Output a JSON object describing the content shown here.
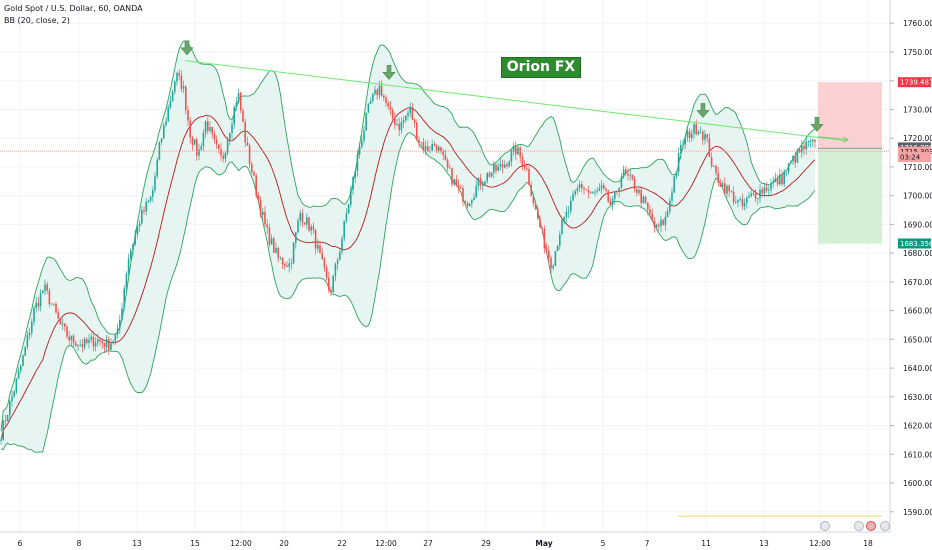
{
  "header": {
    "symbol_line": "Gold Spot / U.S. Dollar, 60, OANDA",
    "indicator_line": "BB (20, close, 2)"
  },
  "watermark": {
    "text": "Orion FX",
    "bg": "#2e8b2e",
    "fg": "#ffffff"
  },
  "colors": {
    "up": "#26a69a",
    "down": "#ef5350",
    "band_line": "#2ea35a",
    "band_fill": "#e6f5f1",
    "basis": "#b71c1c",
    "trendline": "#6ee86e",
    "arrow": "#6aa56a",
    "price_line": "#f28b8b",
    "stop_zone": "#fbc9c9",
    "target_zone": "#cdeccd",
    "grid": "#f0f3fa"
  },
  "chart_data": {
    "type": "candlestick",
    "ylim": [
      1584,
      1766
    ],
    "y_ticks": [
      1590,
      1600,
      1610,
      1620,
      1630,
      1640,
      1650,
      1660,
      1670,
      1680,
      1690,
      1700,
      1710,
      1720,
      1730,
      1740,
      1750,
      1760
    ],
    "x_ticks": [
      "6",
      "8",
      "13",
      "15",
      "12:00",
      "20",
      "22",
      "12:00",
      "27",
      "29",
      "May",
      "5",
      "7",
      "11",
      "13",
      "12:00",
      "18"
    ],
    "price_path": [
      [
        0,
        1616
      ],
      [
        5,
        1622
      ],
      [
        12,
        1630
      ],
      [
        22,
        1642
      ],
      [
        34,
        1660
      ],
      [
        44,
        1668
      ],
      [
        52,
        1662
      ],
      [
        60,
        1655
      ],
      [
        70,
        1650
      ],
      [
        84,
        1648
      ],
      [
        96,
        1650
      ],
      [
        108,
        1648
      ],
      [
        118,
        1652
      ],
      [
        128,
        1678
      ],
      [
        140,
        1692
      ],
      [
        152,
        1700
      ],
      [
        160,
        1718
      ],
      [
        168,
        1730
      ],
      [
        176,
        1742
      ],
      [
        183,
        1738
      ],
      [
        190,
        1722
      ],
      [
        198,
        1714
      ],
      [
        206,
        1726
      ],
      [
        214,
        1718
      ],
      [
        222,
        1712
      ],
      [
        230,
        1724
      ],
      [
        238,
        1736
      ],
      [
        246,
        1718
      ],
      [
        256,
        1702
      ],
      [
        266,
        1688
      ],
      [
        278,
        1678
      ],
      [
        290,
        1676
      ],
      [
        300,
        1694
      ],
      [
        312,
        1688
      ],
      [
        322,
        1676
      ],
      [
        330,
        1666
      ],
      [
        340,
        1682
      ],
      [
        350,
        1700
      ],
      [
        360,
        1718
      ],
      [
        370,
        1732
      ],
      [
        380,
        1738
      ],
      [
        390,
        1728
      ],
      [
        400,
        1724
      ],
      [
        410,
        1730
      ],
      [
        418,
        1720
      ],
      [
        426,
        1716
      ],
      [
        436,
        1718
      ],
      [
        446,
        1710
      ],
      [
        458,
        1702
      ],
      [
        468,
        1698
      ],
      [
        478,
        1704
      ],
      [
        490,
        1708
      ],
      [
        502,
        1710
      ],
      [
        516,
        1716
      ],
      [
        526,
        1710
      ],
      [
        536,
        1694
      ],
      [
        544,
        1684
      ],
      [
        552,
        1676
      ],
      [
        560,
        1688
      ],
      [
        570,
        1696
      ],
      [
        580,
        1704
      ],
      [
        592,
        1700
      ],
      [
        602,
        1702
      ],
      [
        612,
        1696
      ],
      [
        622,
        1708
      ],
      [
        634,
        1704
      ],
      [
        646,
        1696
      ],
      [
        656,
        1688
      ],
      [
        666,
        1692
      ],
      [
        674,
        1706
      ],
      [
        682,
        1718
      ],
      [
        690,
        1722
      ],
      [
        698,
        1724
      ],
      [
        706,
        1720
      ],
      [
        714,
        1708
      ],
      [
        722,
        1704
      ],
      [
        732,
        1700
      ],
      [
        742,
        1696
      ],
      [
        752,
        1700
      ],
      [
        762,
        1702
      ],
      [
        772,
        1704
      ],
      [
        782,
        1706
      ],
      [
        792,
        1712
      ],
      [
        802,
        1716
      ],
      [
        810,
        1718
      ],
      [
        816,
        1717
      ]
    ],
    "bollinger": {
      "period": 20,
      "source": "close",
      "stddev": 2
    },
    "trendline": {
      "from": [
        185,
        1747
      ],
      "to": [
        848,
        1719
      ]
    },
    "resistance_touch_arrows_x": [
      187,
      389,
      703,
      817
    ],
    "current_price_line": 1715.5,
    "position": {
      "x_start": 818,
      "x_end": 882,
      "entry": 1716.5,
      "stop": 1739.5,
      "target": 1683.3
    },
    "projection_arrow": {
      "from": [
        818,
        1720.5
      ],
      "to": [
        848,
        1719.5
      ]
    },
    "bottom_line": 1588.5
  },
  "price_labels": [
    {
      "value": 1739.487,
      "text": "1739.487",
      "bg": "#f23645",
      "fg": "#ffffff"
    },
    {
      "value": 1716.788,
      "text": "1716.788",
      "bg": "#5d606b",
      "fg": "#ffffff"
    },
    {
      "value": 1715.303,
      "text": "1715.303",
      "bg": "#f5a3a3",
      "fg": "#131722"
    },
    {
      "value": 1713.4,
      "text": "03:24",
      "bg": "#f5a3a3",
      "fg": "#131722"
    },
    {
      "value": 1683.356,
      "text": "1683.356",
      "bg": "#089981",
      "fg": "#ffffff"
    }
  ]
}
